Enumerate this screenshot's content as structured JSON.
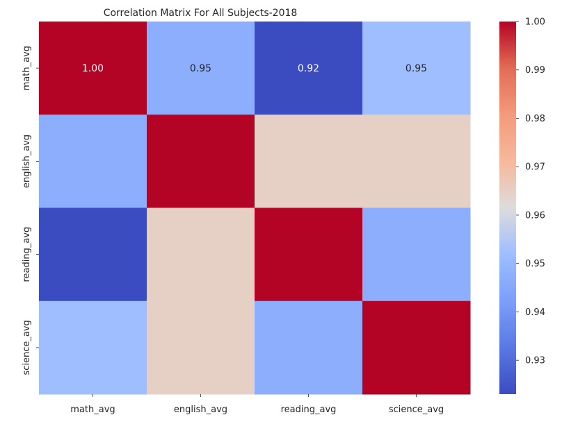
{
  "chart_data": {
    "type": "heatmap",
    "title": "Correlation Matrix For All Subjects-2018",
    "xlabel": "",
    "ylabel": "",
    "x_categories": [
      "math_avg",
      "english_avg",
      "reading_avg",
      "science_avg"
    ],
    "y_categories": [
      "math_avg",
      "english_avg",
      "reading_avg",
      "science_avg"
    ],
    "values": [
      [
        1.0,
        0.947,
        0.923,
        0.952
      ],
      [
        0.947,
        1.0,
        0.965,
        0.965
      ],
      [
        0.923,
        0.965,
        1.0,
        0.947
      ],
      [
        0.952,
        0.965,
        0.947,
        1.0
      ]
    ],
    "annotations": [
      [
        "1.00",
        "0.95",
        "0.92",
        "0.95"
      ],
      [
        "",
        "",
        "",
        ""
      ],
      [
        "",
        "",
        "",
        ""
      ],
      [
        "",
        "",
        "",
        ""
      ]
    ],
    "colormap": "coolwarm",
    "colorbar": {
      "range": [
        0.923,
        1.0
      ],
      "ticks": [
        0.93,
        0.94,
        0.95,
        0.96,
        0.97,
        0.98,
        0.99,
        1.0
      ],
      "tick_labels": [
        "0.93",
        "0.94",
        "0.95",
        "0.96",
        "0.97",
        "0.98",
        "0.99",
        "1.00"
      ],
      "position": "right"
    },
    "grid": false
  }
}
